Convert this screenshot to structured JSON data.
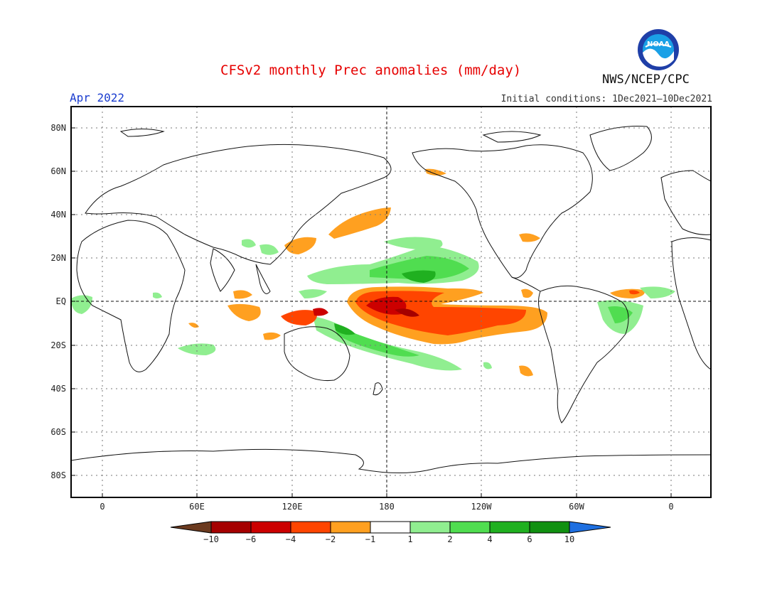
{
  "title": "CFSv2 monthly Prec anomalies (mm/day)",
  "month": "Apr 2022",
  "initial_conditions": "Initial conditions: 1Dec2021—10Dec2021",
  "agency": "NWS/NCEP/CPC",
  "logo_text": "NOAA",
  "lat_labels": [
    "80N",
    "60N",
    "40N",
    "20N",
    "EQ",
    "20S",
    "40S",
    "60S",
    "80S"
  ],
  "lon_labels": [
    "0",
    "60E",
    "120E",
    "180",
    "120W",
    "60W",
    "0"
  ],
  "colorbar": {
    "labels": [
      "-10",
      "-6",
      "-4",
      "-2",
      "-1",
      "1",
      "2",
      "4",
      "6",
      "10"
    ],
    "colors": [
      "#6b3a1f",
      "#a50000",
      "#cc0000",
      "#ff4500",
      "#ffa020",
      "#ffffff",
      "#90ee90",
      "#50dd50",
      "#20b020",
      "#109010",
      "#1e6fe0"
    ]
  },
  "colors": {
    "land_outline": "#111111",
    "grid": "#777777"
  }
}
